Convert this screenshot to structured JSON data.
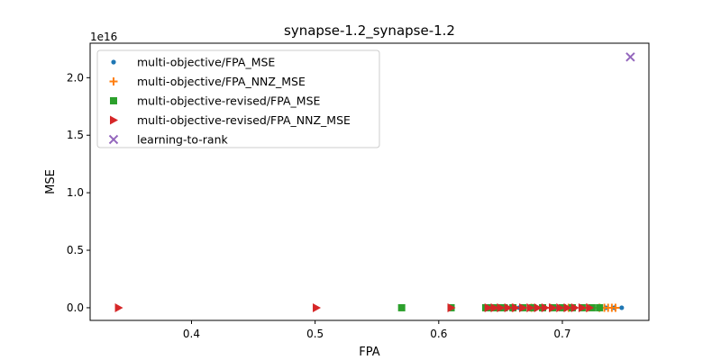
{
  "chart_data": {
    "type": "scatter",
    "title": "synapse-1.2_synapse-1.2",
    "xlabel": "FPA",
    "ylabel": "MSE",
    "y_offset_label": "1e16",
    "xlim": [
      0.318,
      0.77
    ],
    "ylim": [
      -0.11,
      2.3
    ],
    "x_ticks": [
      0.4,
      0.5,
      0.6,
      0.7
    ],
    "x_tick_labels": [
      "0.4",
      "0.5",
      "0.6",
      "0.7"
    ],
    "y_ticks": [
      0.0,
      0.5,
      1.0,
      1.5,
      2.0
    ],
    "y_tick_labels": [
      "0.0",
      "0.5",
      "1.0",
      "1.5",
      "2.0"
    ],
    "grid": false,
    "legend_position": "top-left",
    "series": [
      {
        "name": "multi-objective/FPA_MSE",
        "marker": "dot",
        "color": "#1f77b4",
        "points": [
          [
            0.655,
            0
          ],
          [
            0.665,
            0
          ],
          [
            0.675,
            0
          ],
          [
            0.685,
            0
          ],
          [
            0.695,
            0
          ],
          [
            0.705,
            0
          ],
          [
            0.715,
            0
          ],
          [
            0.725,
            0
          ],
          [
            0.735,
            0
          ],
          [
            0.742,
            0
          ],
          [
            0.748,
            0
          ]
        ]
      },
      {
        "name": "multi-objective/FPA_NNZ_MSE",
        "marker": "plus",
        "color": "#ff7f0e",
        "points": [
          [
            0.66,
            0
          ],
          [
            0.675,
            0
          ],
          [
            0.69,
            0
          ],
          [
            0.705,
            0
          ],
          [
            0.72,
            0
          ],
          [
            0.73,
            0
          ],
          [
            0.734,
            0
          ],
          [
            0.737,
            0
          ],
          [
            0.74,
            0
          ],
          [
            0.743,
            0
          ]
        ]
      },
      {
        "name": "multi-objective-revised/FPA_MSE",
        "marker": "square",
        "color": "#2ca02c",
        "points": [
          [
            0.57,
            0
          ],
          [
            0.61,
            0
          ],
          [
            0.638,
            0
          ],
          [
            0.643,
            0
          ],
          [
            0.648,
            0
          ],
          [
            0.653,
            0
          ],
          [
            0.66,
            0
          ],
          [
            0.668,
            0
          ],
          [
            0.676,
            0
          ],
          [
            0.684,
            0
          ],
          [
            0.692,
            0
          ],
          [
            0.7,
            0
          ],
          [
            0.708,
            0
          ],
          [
            0.716,
            0
          ],
          [
            0.724,
            0
          ],
          [
            0.73,
            0
          ]
        ]
      },
      {
        "name": "multi-objective-revised/FPA_NNZ_MSE",
        "marker": "triangle-right",
        "color": "#d62728",
        "points": [
          [
            0.341,
            0
          ],
          [
            0.501,
            0
          ],
          [
            0.61,
            0
          ],
          [
            0.64,
            0
          ],
          [
            0.645,
            0
          ],
          [
            0.65,
            0
          ],
          [
            0.656,
            0
          ],
          [
            0.662,
            0
          ],
          [
            0.668,
            0
          ],
          [
            0.674,
            0
          ],
          [
            0.68,
            0
          ],
          [
            0.686,
            0
          ],
          [
            0.692,
            0
          ],
          [
            0.698,
            0
          ],
          [
            0.704,
            0
          ],
          [
            0.71,
            0
          ],
          [
            0.716,
            0
          ],
          [
            0.722,
            0
          ]
        ]
      },
      {
        "name": "learning-to-rank",
        "marker": "x",
        "color": "#9467bd",
        "points": [
          [
            0.755,
            2.18
          ]
        ]
      }
    ]
  }
}
